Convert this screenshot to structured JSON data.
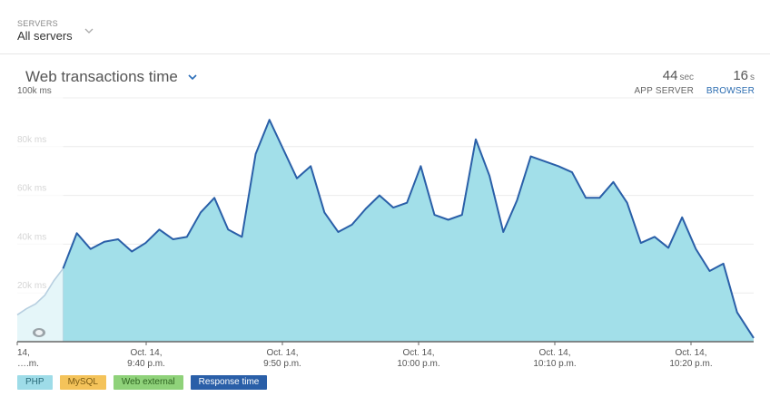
{
  "servers": {
    "label": "SERVERS",
    "value": "All servers"
  },
  "chart_header": {
    "title": "Web transactions time"
  },
  "metrics": {
    "app_server": {
      "value": "44",
      "unit": "sec",
      "label": "APP SERVER"
    },
    "browser": {
      "value": "16",
      "unit": "s",
      "label": "BROWSER"
    }
  },
  "legend": [
    "PHP",
    "MySQL",
    "Web external",
    "Response time"
  ],
  "colors": {
    "area": "#a2dfe9",
    "line": "#2a5fa8",
    "php": "#9edce8",
    "mysql": "#f4c35a",
    "web_external": "#8fd27a",
    "response_time": "#2a5fa8"
  },
  "chart_data": {
    "type": "area",
    "title": "Web transactions time",
    "ylim": [
      0,
      100
    ],
    "y_ticks": [
      "100k ms",
      "80k ms",
      "60k ms",
      "40k ms",
      "20k ms"
    ],
    "x_ticks": [
      {
        "line1": "14,",
        "line2": "….m."
      },
      {
        "line1": "Oct. 14,",
        "line2": "9:40 p.m."
      },
      {
        "line1": "Oct. 14,",
        "line2": "9:50 p.m."
      },
      {
        "line1": "Oct. 14,",
        "line2": "10:00 p.m."
      },
      {
        "line1": "Oct. 14,",
        "line2": "10:10 p.m."
      },
      {
        "line1": "Oct. 14,",
        "line2": "10:20 p.m."
      }
    ],
    "x_range_min": [
      9.67,
      63.2
    ],
    "series": [
      {
        "values": [
          [
            9.67,
            11
          ],
          [
            10.33,
            13.5
          ],
          [
            11.0,
            15.5
          ],
          [
            11.67,
            19
          ],
          [
            12.33,
            25
          ],
          [
            13.0,
            30
          ],
          [
            14.0,
            44.5
          ],
          [
            15.0,
            38
          ],
          [
            16.0,
            41
          ],
          [
            17.0,
            42
          ],
          [
            18.0,
            37
          ],
          [
            19.0,
            40.5
          ],
          [
            20.0,
            46
          ],
          [
            21.0,
            42
          ],
          [
            22.0,
            43
          ],
          [
            23.0,
            53
          ],
          [
            24.0,
            59
          ],
          [
            25.0,
            46
          ],
          [
            26.0,
            43
          ],
          [
            27.0,
            77
          ],
          [
            28.0,
            91
          ],
          [
            29.0,
            79
          ],
          [
            30.0,
            67
          ],
          [
            31.0,
            72
          ],
          [
            32.0,
            53
          ],
          [
            33.0,
            45
          ],
          [
            34.0,
            48
          ],
          [
            35.0,
            54.5
          ],
          [
            36.0,
            60
          ],
          [
            37.0,
            55
          ],
          [
            38.0,
            57
          ],
          [
            39.0,
            72
          ],
          [
            40.0,
            52
          ],
          [
            41.0,
            50
          ],
          [
            42.0,
            52
          ],
          [
            43.0,
            83
          ],
          [
            44.0,
            68
          ],
          [
            45.0,
            45
          ],
          [
            46.0,
            58
          ],
          [
            47.0,
            76
          ],
          [
            48.0,
            74
          ],
          [
            49.0,
            72
          ],
          [
            50.0,
            69.5
          ],
          [
            51.0,
            59
          ],
          [
            52.0,
            59
          ],
          [
            53.0,
            65.5
          ],
          [
            54.0,
            57
          ],
          [
            55.0,
            40.5
          ],
          [
            56.0,
            43
          ],
          [
            57.0,
            38.5
          ],
          [
            58.0,
            51
          ],
          [
            59.0,
            38
          ],
          [
            60.0,
            29
          ],
          [
            61.0,
            32
          ],
          [
            62.0,
            12
          ],
          [
            63.2,
            1.5
          ]
        ]
      }
    ],
    "shaded_until": 13.0
  }
}
